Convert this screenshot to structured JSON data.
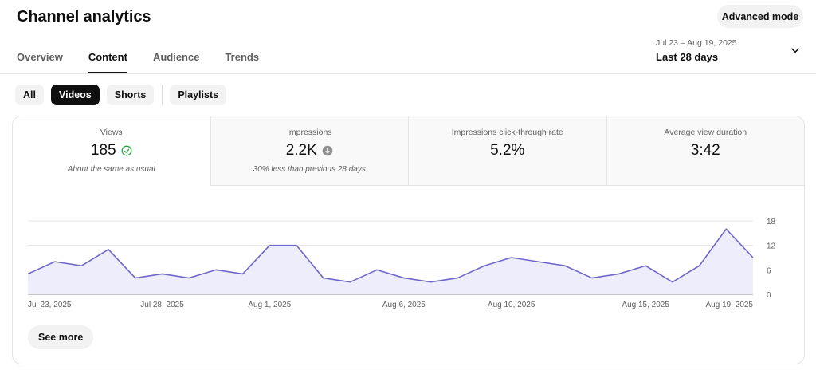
{
  "header": {
    "title": "Channel analytics",
    "advanced_mode_label": "Advanced mode"
  },
  "tabs": [
    {
      "label": "Overview",
      "active": false
    },
    {
      "label": "Content",
      "active": true
    },
    {
      "label": "Audience",
      "active": false
    },
    {
      "label": "Trends",
      "active": false
    }
  ],
  "date_picker": {
    "range": "Jul 23 – Aug 19, 2025",
    "label": "Last 28 days",
    "icon": "chevron-down-icon"
  },
  "filters": [
    {
      "label": "All",
      "active": false
    },
    {
      "label": "Videos",
      "active": true
    },
    {
      "label": "Shorts",
      "active": false
    },
    {
      "label": "Playlists",
      "active": false
    }
  ],
  "metrics": [
    {
      "title": "Views",
      "value": "185",
      "note": "About the same as usual",
      "icon": "check-circle-icon",
      "active": true
    },
    {
      "title": "Impressions",
      "value": "2.2K",
      "note": "30% less than previous 28 days",
      "icon": "down-arrow-circle-icon",
      "active": false
    },
    {
      "title": "Impressions click-through rate",
      "value": "5.2%",
      "note": "",
      "active": false
    },
    {
      "title": "Average view duration",
      "value": "3:42",
      "note": "",
      "active": false
    }
  ],
  "chart_data": {
    "type": "area",
    "x": [
      "Jul 23",
      "Jul 24",
      "Jul 25",
      "Jul 26",
      "Jul 27",
      "Jul 28",
      "Jul 29",
      "Jul 30",
      "Jul 31",
      "Aug 1",
      "Aug 2",
      "Aug 3",
      "Aug 4",
      "Aug 5",
      "Aug 6",
      "Aug 7",
      "Aug 8",
      "Aug 9",
      "Aug 10",
      "Aug 11",
      "Aug 12",
      "Aug 13",
      "Aug 14",
      "Aug 15",
      "Aug 16",
      "Aug 17",
      "Aug 18",
      "Aug 19"
    ],
    "values": [
      5,
      8,
      7,
      11,
      4,
      5,
      4,
      6,
      5,
      12,
      12,
      4,
      3,
      6,
      4,
      3,
      4,
      7,
      9,
      8,
      7,
      4,
      5,
      7,
      3,
      7,
      16,
      9
    ],
    "x_tick_labels": [
      {
        "index": 0,
        "label": "Jul 23, 2025"
      },
      {
        "index": 5,
        "label": "Jul 28, 2025"
      },
      {
        "index": 9,
        "label": "Aug 1, 2025"
      },
      {
        "index": 14,
        "label": "Aug 6, 2025"
      },
      {
        "index": 18,
        "label": "Aug 10, 2025"
      },
      {
        "index": 23,
        "label": "Aug 15, 2025"
      },
      {
        "index": 27,
        "label": "Aug 19, 2025"
      }
    ],
    "y_ticks": [
      0,
      6,
      12,
      18
    ],
    "ylim": [
      0,
      18
    ],
    "y_axis_side": "right",
    "grid": true,
    "line_color": "#6f68c8",
    "fill_color": "#eeedfb"
  },
  "footer": {
    "see_more_label": "See more"
  }
}
